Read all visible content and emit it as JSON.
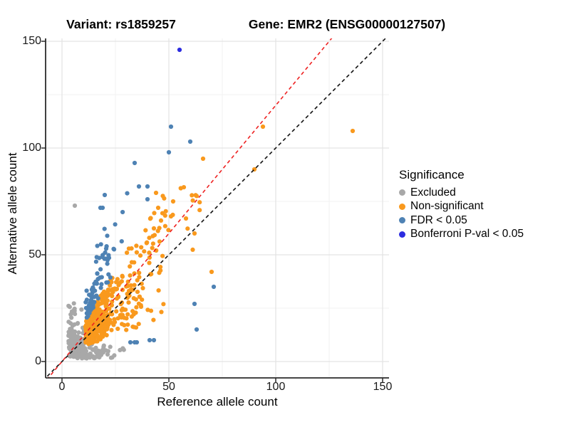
{
  "title": {
    "left": "Variant: rs1859257",
    "right": "Gene: EMR2 (ENSG00000127507)"
  },
  "axes": {
    "x": {
      "label": "Reference allele count",
      "ticks": [
        0,
        50,
        100,
        150
      ],
      "minor_ticks": [
        25,
        75,
        125
      ],
      "range": [
        -7.5,
        153
      ]
    },
    "y": {
      "label": "Alternative allele count",
      "ticks": [
        0,
        50,
        100,
        150
      ],
      "minor_ticks": [
        25,
        75,
        125
      ],
      "range": [
        -7.5,
        151.5
      ]
    }
  },
  "legend": {
    "title": "Significance",
    "items": [
      {
        "label": "Excluded",
        "class": "excluded",
        "color": "#A8A8A8"
      },
      {
        "label": "Non-significant",
        "class": "non_significant",
        "color": "#F9991D"
      },
      {
        "label": "FDR < 0.05",
        "class": "fdr",
        "color": "#4E82B4"
      },
      {
        "label": "Bonferroni P-val < 0.05",
        "class": "bonferroni",
        "color": "#2C2CE0"
      }
    ]
  },
  "chart_data": {
    "type": "scatter",
    "title": "Variant: rs1859257  Gene: EMR2 (ENSG00000127507)",
    "xlabel": "Reference allele count",
    "ylabel": "Alternative allele count",
    "xlim": [
      -7.5,
      153
    ],
    "ylim": [
      -7.5,
      151.5
    ],
    "grid": "on",
    "legend_position": "right",
    "seed": 1859257,
    "point_radius": 3.1,
    "lines": [
      {
        "name": "identity",
        "slope": 1.0,
        "intercept": 0,
        "color": "#111111",
        "dash": "5,4"
      },
      {
        "name": "expected-ratio",
        "slope": 1.2,
        "intercept": 0,
        "color": "#EE2222",
        "dash": "5,4"
      }
    ],
    "clusters": [
      {
        "class": "excluded",
        "gen": "blob",
        "count": 95,
        "x0": 3,
        "xs": 3.0,
        "xcap": 2.4,
        "y0": 2,
        "ys": 11,
        "ycap": 3.0
      },
      {
        "class": "excluded",
        "gen": "blob",
        "count": 90,
        "x0": 7,
        "xs": 9.0,
        "xcap": 2.6,
        "y0": 1.5,
        "ys": 2.6,
        "ycap": 2.3
      },
      {
        "class": "excluded",
        "gen": "blob",
        "count": 70,
        "x0": 4,
        "xs": 4.5,
        "xcap": 2.2,
        "y0": 2.5,
        "ys": 5.5,
        "ycap": 2.2
      },
      {
        "class": "non_significant",
        "gen": "ratio",
        "count": 340,
        "x0": 11,
        "xs": 8.5,
        "xcap": 2.8,
        "rmin": 0.55,
        "rspan": 1.15,
        "ymin": 8.2,
        "ymax": 68
      },
      {
        "class": "non_significant",
        "gen": "ratio",
        "count": 75,
        "x0": 28,
        "xs": 14,
        "xcap": 2.6,
        "rmin": 0.45,
        "rspan": 1.05,
        "ymin": 9,
        "ymax": 78
      },
      {
        "class": "non_significant",
        "gen": "ratio",
        "count": 22,
        "x0": 36,
        "xs": 11,
        "xcap": 2.2,
        "rmin": 1.15,
        "rspan": 0.5,
        "ymin": 30,
        "ymax": 82
      },
      {
        "class": "fdr",
        "gen": "band",
        "count": 78,
        "x0": 11,
        "xs": 7.5,
        "xcap": 2.6,
        "rmin": 1.72,
        "rs": 0.62,
        "ymax": 80
      }
    ],
    "outlier_points": {
      "excluded": [
        [
          6,
          73
        ]
      ],
      "non_significant": [
        [
          94,
          110
        ],
        [
          136,
          108
        ],
        [
          90,
          90
        ],
        [
          66,
          95
        ],
        [
          70,
          42
        ],
        [
          44,
          79
        ],
        [
          52,
          75
        ],
        [
          45,
          72
        ],
        [
          51,
          68
        ],
        [
          58,
          67
        ],
        [
          62,
          60
        ]
      ],
      "fdr": [
        [
          51,
          110
        ],
        [
          60,
          103
        ],
        [
          50,
          98
        ],
        [
          34,
          93
        ],
        [
          20,
          78
        ],
        [
          18,
          72
        ],
        [
          19,
          72
        ],
        [
          36,
          82
        ],
        [
          40,
          82
        ],
        [
          40,
          76
        ],
        [
          32,
          9
        ],
        [
          34,
          9
        ],
        [
          35,
          9
        ],
        [
          41,
          10
        ],
        [
          43,
          10
        ],
        [
          62,
          27
        ],
        [
          63,
          15
        ],
        [
          71,
          35
        ]
      ],
      "bonferroni": [
        [
          55,
          146
        ]
      ]
    }
  }
}
